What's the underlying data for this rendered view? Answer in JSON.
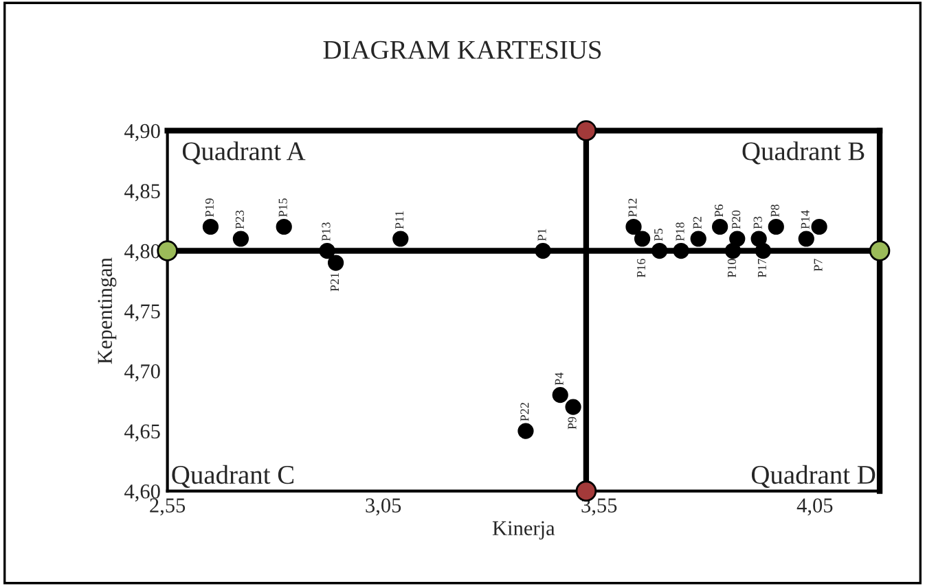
{
  "chart_data": {
    "type": "scatter",
    "title": "DIAGRAM KARTESIUS",
    "xlabel": "Kinerja",
    "ylabel": "Kepentingan",
    "x": [
      2.65,
      2.72,
      2.82,
      2.92,
      2.94,
      3.09,
      3.42,
      3.38,
      3.46,
      3.49,
      3.63,
      3.65,
      3.69,
      3.74,
      3.78,
      3.83,
      3.87,
      3.86,
      3.92,
      3.93,
      3.96,
      4.03,
      4.06
    ],
    "series": [
      {
        "color": "#000000",
        "values": [
          4.82,
          4.81,
          4.82,
          4.8,
          4.79,
          4.81,
          4.8,
          4.65,
          4.68,
          4.67,
          4.82,
          4.81,
          4.8,
          4.8,
          4.81,
          4.82,
          4.81,
          4.8,
          4.81,
          4.8,
          4.82,
          4.81,
          4.82
        ],
        "value_labels": [
          "P19",
          "P23",
          "P15",
          "P13",
          "P21",
          "P11",
          "P1",
          "P22",
          "P4",
          "P9",
          "P12",
          "P16",
          "P5",
          "P18",
          "P2",
          "P6",
          "P20",
          "P10",
          "P3",
          "P17",
          "P8",
          "P14",
          "P7"
        ]
      }
    ],
    "xlim": [
      2.55,
      4.2
    ],
    "ylim": [
      4.6,
      4.9
    ],
    "xticks": [
      {
        "value": 2.55,
        "label": "2,55"
      },
      {
        "value": 3.05,
        "label": "3,05"
      },
      {
        "value": 3.55,
        "label": "3,55"
      },
      {
        "value": 4.05,
        "label": "4,05"
      }
    ],
    "yticks": [
      {
        "value": 4.6,
        "label": "4,60"
      },
      {
        "value": 4.65,
        "label": "4,65"
      },
      {
        "value": 4.7,
        "label": "4,70"
      },
      {
        "value": 4.75,
        "label": "4,75"
      },
      {
        "value": 4.8,
        "label": "4,80"
      },
      {
        "value": 4.85,
        "label": "4,85"
      },
      {
        "value": 4.9,
        "label": "4,90"
      }
    ],
    "ref_lines": [
      {
        "axis": "x",
        "value": 3.52,
        "color": "#000000"
      },
      {
        "axis": "y",
        "value": 4.8,
        "color": "#000000"
      }
    ],
    "annotations": [
      "Quadrant A",
      "Quadrant B",
      "Quadrant C",
      "Quadrant D"
    ],
    "marker": "circle",
    "grid": false,
    "legend": false
  }
}
